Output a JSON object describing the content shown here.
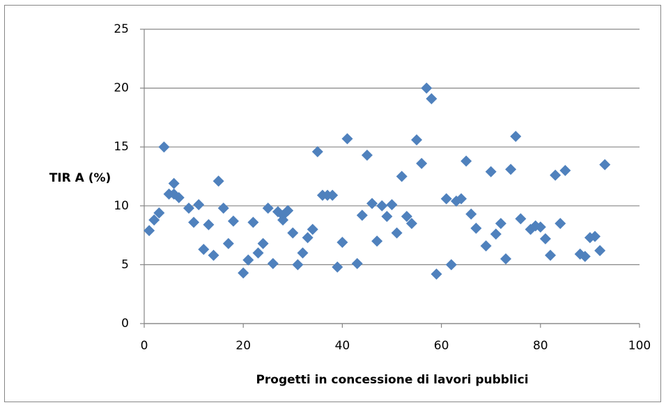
{
  "chart_data": {
    "type": "scatter",
    "x_label": "Progetti in concessione  di lavori pubblici",
    "y_label": "TIR A (%)",
    "color": "#4f81bd",
    "grid": true,
    "xlim": [
      0,
      100
    ],
    "xticks": [
      0,
      20,
      40,
      60,
      80,
      100
    ],
    "ylim": [
      0,
      25
    ],
    "yticks": [
      0,
      5,
      10,
      15,
      20,
      25
    ],
    "x": [
      1,
      2,
      3,
      4,
      5,
      6,
      6,
      7,
      9,
      10,
      11,
      12,
      13,
      14,
      15,
      16,
      17,
      18,
      20,
      21,
      22,
      23,
      24,
      25,
      26,
      27,
      28,
      28,
      29,
      30,
      31,
      32,
      33,
      34,
      35,
      36,
      37,
      38,
      39,
      40,
      41,
      43,
      44,
      45,
      46,
      47,
      48,
      49,
      50,
      51,
      52,
      53,
      54,
      55,
      56,
      57,
      58,
      59,
      61,
      62,
      63,
      64,
      65,
      66,
      67,
      69,
      70,
      71,
      72,
      73,
      74,
      75,
      76,
      78,
      79,
      80,
      81,
      82,
      83,
      84,
      85,
      88,
      89,
      90,
      91,
      92,
      93
    ],
    "values": [
      7.9,
      8.8,
      9.4,
      15.0,
      11.0,
      11.9,
      11.0,
      10.7,
      9.8,
      8.6,
      10.1,
      6.3,
      8.4,
      5.8,
      12.1,
      9.8,
      6.8,
      8.7,
      4.3,
      5.4,
      8.6,
      6.0,
      6.8,
      9.8,
      5.1,
      9.5,
      8.8,
      9.2,
      9.6,
      7.7,
      5.0,
      6.0,
      7.3,
      8.0,
      14.6,
      10.9,
      10.9,
      10.9,
      4.8,
      6.9,
      15.7,
      5.1,
      9.2,
      14.3,
      10.2,
      7.0,
      10.0,
      9.1,
      10.1,
      7.7,
      12.5,
      9.1,
      8.5,
      15.6,
      13.6,
      20.0,
      19.1,
      4.2,
      10.6,
      5.0,
      10.4,
      10.6,
      13.8,
      9.3,
      8.1,
      6.6,
      12.9,
      7.6,
      8.5,
      5.5,
      13.1,
      15.9,
      8.9,
      8.0,
      8.3,
      8.2,
      7.2,
      5.8,
      12.6,
      8.5,
      13.0,
      5.9,
      5.7,
      7.3,
      7.4,
      6.2,
      13.5
    ]
  }
}
